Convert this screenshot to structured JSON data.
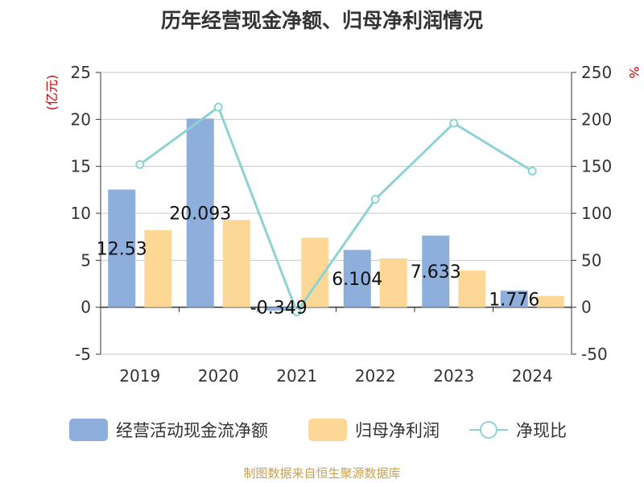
{
  "title": "历年经营现金净额、归母净利润情况",
  "left_unit": "(亿元)",
  "right_unit": "%",
  "source": "制图数据来自恒生聚源数据库",
  "colors": {
    "series1": "#8eaedb",
    "series2": "#fdd795",
    "series3": "#8dd3d6",
    "label": "#cc0000",
    "grid": "#c8c8c8",
    "axis": "#333333"
  },
  "legend": {
    "s1": "经营活动现金流净额",
    "s2": "归母净利润",
    "s3": "净现比"
  },
  "chart_data": {
    "type": "bar",
    "title": "历年经营现金净额、归母净利润情况",
    "categories": [
      "2019",
      "2020",
      "2021",
      "2022",
      "2023",
      "2024"
    ],
    "series": [
      {
        "name": "经营活动现金流净额",
        "type": "bar",
        "axis": "left",
        "values": [
          12.53,
          20.093,
          -0.349,
          6.104,
          7.633,
          1.776
        ],
        "data_labels": [
          "12.53",
          "20.093",
          "-0.349",
          "6.104",
          "7.633",
          "1.776"
        ]
      },
      {
        "name": "归母净利润",
        "type": "bar",
        "axis": "left",
        "values": [
          8.2,
          9.3,
          7.4,
          5.2,
          3.9,
          1.2
        ]
      },
      {
        "name": "净现比",
        "type": "line",
        "axis": "right",
        "values": [
          152,
          213,
          -5,
          115,
          196,
          145
        ]
      }
    ],
    "y_left": {
      "label": "(亿元)",
      "ylim": [
        -5,
        25
      ],
      "ticks": [
        "25",
        "20",
        "15",
        "10",
        "5",
        "0",
        "-5"
      ]
    },
    "y_right": {
      "label": "%",
      "ylim": [
        -50,
        250
      ],
      "ticks": [
        "250",
        "200",
        "150",
        "100",
        "50",
        "0",
        "-50"
      ]
    },
    "grid": true,
    "legend_position": "bottom"
  }
}
